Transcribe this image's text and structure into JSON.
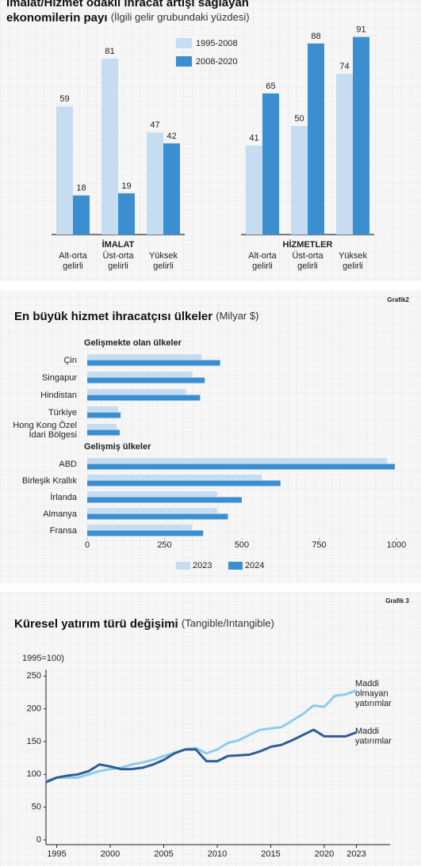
{
  "chart_data": [
    {
      "type": "bar",
      "title_lines": [
        "İmalat/Hizmet odaklı ihracat artışı sağlayan",
        "ekonomilerin payı"
      ],
      "subtitle": "(İlgili gelir grubundaki yüzdesi)",
      "groups": [
        "İMALAT",
        "HİZMETLER"
      ],
      "categories": [
        "Alt-orta gelirli",
        "Üst-orta gelirli",
        "Yüksek gelirli",
        "Alt-orta gelirli",
        "Üst-orta gelirli",
        "Yüksek gelirli"
      ],
      "series": [
        {
          "name": "1995-2008",
          "color": "#c6dcf0",
          "values": [
            59,
            81,
            47,
            41,
            50,
            74
          ]
        },
        {
          "name": "2008-2020",
          "color": "#3b8fd1",
          "values": [
            18,
            19,
            42,
            65,
            88,
            91
          ]
        }
      ],
      "ylim": [
        0,
        100
      ]
    },
    {
      "type": "barh",
      "label": "Grafik2",
      "title": "En büyük hizmet ihracatçısı ülkeler",
      "subtitle": "(Milyar $)",
      "groups": [
        "Gelişmekte olan ülkeler",
        "Gelişmiş ülkeler"
      ],
      "categories": [
        "Çin",
        "Singapur",
        "Hindistan",
        "Türkiye",
        "Hong Kong Özel İdari Bölgesi",
        "ABD",
        "Birleşik Krallık",
        "İrlanda",
        "Almanya",
        "Fransa"
      ],
      "series": [
        {
          "name": "2023",
          "color": "#c6dcf0",
          "values": [
            370,
            340,
            320,
            100,
            95,
            970,
            565,
            420,
            420,
            340
          ]
        },
        {
          "name": "2024",
          "color": "#3b8fd1",
          "values": [
            430,
            380,
            365,
            108,
            105,
            995,
            625,
            500,
            455,
            375
          ]
        }
      ],
      "xlim": [
        0,
        1000
      ],
      "xticks": [
        0,
        250,
        500,
        750,
        1000
      ]
    },
    {
      "type": "line",
      "label": "Grafik 3",
      "title": "Küresel yatırım türü değişimi",
      "subtitle": "(Tangible/Intangible)",
      "ylabel": "1995=100)",
      "x": [
        1994,
        1995,
        1996,
        1997,
        1998,
        1999,
        2000,
        2001,
        2002,
        2003,
        2004,
        2005,
        2006,
        2007,
        2008,
        2009,
        2010,
        2011,
        2012,
        2013,
        2014,
        2015,
        2016,
        2017,
        2018,
        2019,
        2020,
        2021,
        2022,
        2023
      ],
      "series": [
        {
          "name": "Maddi olmayan yatırımlar",
          "color": "#8ecbee",
          "values": [
            90,
            95,
            95,
            95,
            100,
            105,
            108,
            110,
            115,
            118,
            122,
            128,
            133,
            138,
            140,
            132,
            138,
            148,
            152,
            160,
            168,
            170,
            172,
            182,
            192,
            205,
            203,
            220,
            222,
            228
          ]
        },
        {
          "name": "Maddi yatırımlar",
          "color": "#2e5d94",
          "values": [
            88,
            95,
            98,
            100,
            105,
            115,
            112,
            108,
            108,
            110,
            115,
            122,
            132,
            138,
            138,
            120,
            120,
            128,
            129,
            130,
            135,
            142,
            145,
            152,
            160,
            168,
            158,
            158,
            158,
            164
          ]
        }
      ],
      "xlim": [
        1994,
        2026
      ],
      "xticks": [
        1995,
        2000,
        2005,
        2010,
        2015,
        2020,
        2023
      ],
      "ylim": [
        0,
        260
      ],
      "yticks": [
        0,
        50,
        100,
        150,
        200,
        250
      ]
    }
  ]
}
